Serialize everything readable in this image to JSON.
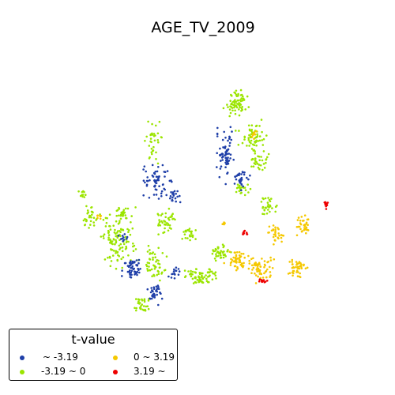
{
  "title": "AGE_TV_2009",
  "legend": {
    "title": "t-value",
    "items": [
      {
        "label": " ~ -3.19",
        "color": "#1f3fa8"
      },
      {
        "label": "-3.19 ~ 0",
        "color": "#9be500"
      },
      {
        "label": "0 ~ 3.19",
        "color": "#f5c800"
      },
      {
        "label": "3.19 ~",
        "color": "#ee0000"
      }
    ]
  },
  "map": {
    "type": "point-map",
    "classes": [
      " ~ -3.19",
      "-3.19 ~ 0",
      "0 ~ 3.19",
      "3.19 ~"
    ]
  }
}
